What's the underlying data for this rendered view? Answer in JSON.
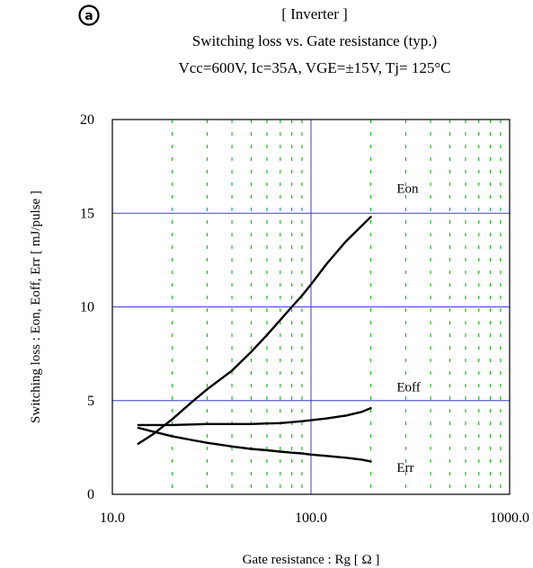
{
  "badge": "a",
  "title": "[ Inverter ]",
  "subtitle": "Switching loss  vs.  Gate resistance (typ.)",
  "conditions": "Vcc=600V, Ic=35A, VGE=±15V, Tj= 125°C",
  "chart_data": {
    "type": "line",
    "xlabel": "Gate resistance  :  Rg  [ Ω ]",
    "ylabel": "Switching loss  :  Eon, Eoff, Err  [ mJ/pulse ]",
    "x_scale": "log",
    "xlim": [
      10,
      1000
    ],
    "ylim": [
      0,
      20
    ],
    "x_ticks": [
      10,
      100,
      1000
    ],
    "x_tick_labels": [
      "10.0",
      "100.0",
      "1000.0"
    ],
    "y_ticks": [
      0,
      5,
      10,
      15,
      20
    ],
    "y_tick_labels": [
      "0",
      "5",
      "10",
      "15",
      "20"
    ],
    "grid": {
      "major": "solid blue lines at x=100 and y=5,10,15",
      "minor": "dashed green lines at x=20..90 and 200..900"
    },
    "colors": {
      "major_grid": "#3b3bd9",
      "minor_grid": "#22bb22",
      "curves": "#000000"
    },
    "series": [
      {
        "name": "Eon",
        "x": [
          13.5,
          16,
          20,
          25,
          30,
          40,
          50,
          60,
          70,
          80,
          90,
          100,
          120,
          150,
          200
        ],
        "y": [
          2.7,
          3.2,
          4.0,
          4.9,
          5.6,
          6.6,
          7.6,
          8.5,
          9.3,
          10.0,
          10.6,
          11.2,
          12.3,
          13.5,
          14.8
        ]
      },
      {
        "name": "Eoff",
        "x": [
          13.5,
          20,
          30,
          40,
          50,
          60,
          70,
          80,
          90,
          100,
          120,
          150,
          180,
          200
        ],
        "y": [
          3.7,
          3.7,
          3.75,
          3.75,
          3.75,
          3.78,
          3.8,
          3.85,
          3.9,
          3.95,
          4.05,
          4.2,
          4.4,
          4.6
        ]
      },
      {
        "name": "Err",
        "x": [
          13.5,
          16,
          20,
          25,
          30,
          40,
          50,
          60,
          70,
          80,
          90,
          100,
          120,
          150,
          180,
          200
        ],
        "y": [
          3.55,
          3.35,
          3.1,
          2.9,
          2.75,
          2.55,
          2.42,
          2.35,
          2.28,
          2.22,
          2.18,
          2.12,
          2.05,
          1.95,
          1.85,
          1.75
        ]
      }
    ],
    "annotations": [
      {
        "text": "Eon",
        "x": 270,
        "y": 16.1
      },
      {
        "text": "Eoff",
        "x": 270,
        "y": 5.5
      },
      {
        "text": "Err",
        "x": 270,
        "y": 1.2
      }
    ]
  }
}
